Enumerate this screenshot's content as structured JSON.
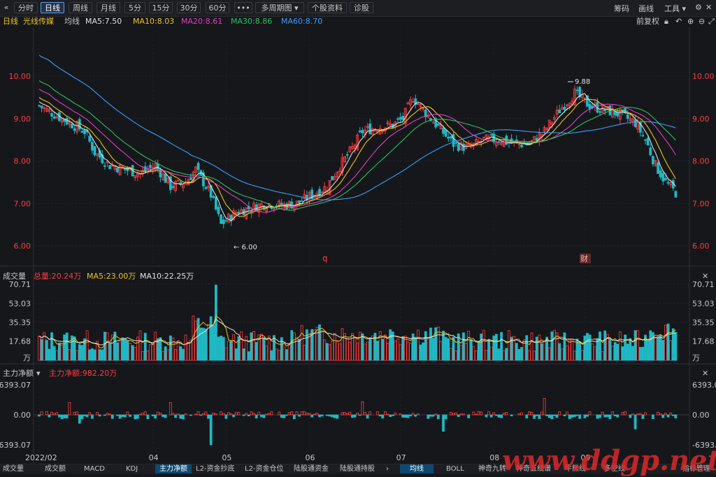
{
  "toolbar": {
    "back_icon": "«",
    "periods": [
      "分时",
      "日线",
      "周线",
      "月线",
      "5分",
      "15分",
      "30分",
      "60分",
      "•••",
      "多周期图 ▾",
      "个股资料",
      "诊股"
    ],
    "active_period": "日线",
    "right": [
      "筹码",
      "画线",
      "工具 ▾"
    ],
    "right_icons": [
      "settings-icon",
      "close-icon"
    ]
  },
  "infobar": {
    "period": "日线",
    "stock_name": "光线传媒",
    "ma_label": "均线",
    "ma5": "MA5:7.50",
    "ma10": "MA10:8.03",
    "ma20": "MA20:8.61",
    "ma30": "MA30:8.86",
    "ma60": "MA60:8.70",
    "adjust": "前复权",
    "colors": {
      "ma5": "#e0e0e0",
      "ma10": "#f0c419",
      "ma20": "#e040c0",
      "ma30": "#30c060",
      "ma60": "#3aa0ff"
    }
  },
  "main_chart": {
    "y_labels": [
      "10.00",
      "9.00",
      "8.00",
      "7.00",
      "6.00"
    ],
    "high_marker": "9.88",
    "low_marker": "6.00",
    "event_markers": [
      "q",
      "财"
    ]
  },
  "volume_panel": {
    "title": "成交量",
    "total": "总量:20.24万",
    "ma5": "MA5:23.00万",
    "ma10": "MA10:22.25万",
    "y_labels": [
      "70.71",
      "53.03",
      "35.35",
      "17.68",
      "万"
    ]
  },
  "flow_panel": {
    "title": "主力净额",
    "value": "主力净额:982.20万",
    "y_labels": [
      "6393.07",
      "0.00",
      "-6393.07"
    ]
  },
  "x_labels": [
    "2022/02",
    "04",
    "05",
    "06",
    "07",
    "08",
    "09"
  ],
  "bottom_tabs": [
    "成交量",
    "成交额",
    "MACD",
    "KDJ",
    "主力净额",
    "L2-资金抄底",
    "L2-资金仓位",
    "陆股通资金",
    "陆股通持股"
  ],
  "bottom_tabs_active": "主力净额",
  "indicator_tabs": [
    "均线",
    "BOLL",
    "神奇九转",
    "神奇五线谱",
    "牛熊线",
    "多空线"
  ],
  "indicator_tabs_active": "均线",
  "indicator_manage": "指标管理",
  "watermark": "www.ddgp.net",
  "colors": {
    "up": "#ff3d3d",
    "down": "#1fb8c4",
    "bg": "#16171b"
  }
}
